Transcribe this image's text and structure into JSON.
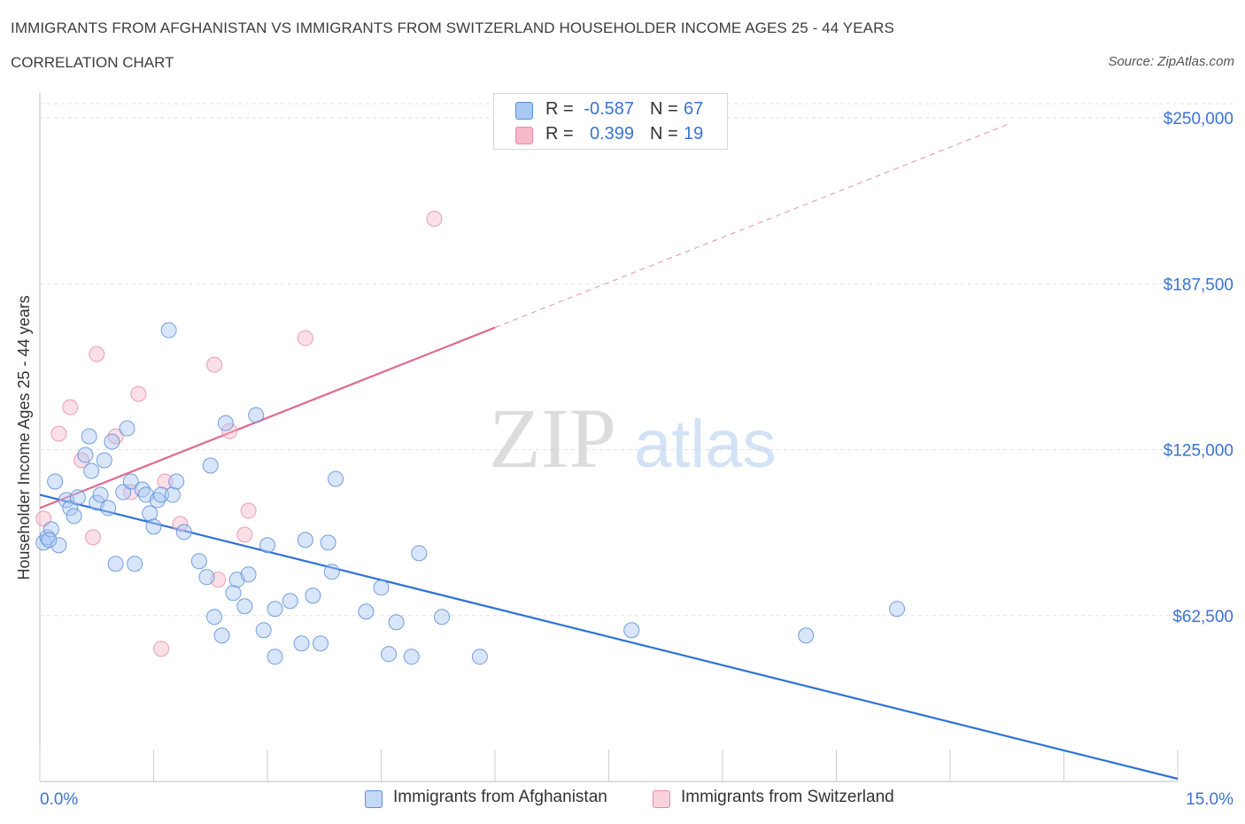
{
  "header": {
    "title": "IMMIGRANTS FROM AFGHANISTAN VS IMMIGRANTS FROM SWITZERLAND HOUSEHOLDER INCOME AGES 25 - 44 YEARS",
    "subtitle": "CORRELATION CHART",
    "source": "Source: ZipAtlas.com"
  },
  "watermark": {
    "zip": "ZIP",
    "atlas": "atlas"
  },
  "legend": {
    "rows": [
      {
        "r_label": "R =",
        "r_value": "-0.587",
        "n_label": "N =",
        "n_value": "67",
        "color": "#aac8f4"
      },
      {
        "r_label": "R =",
        "r_value": "0.399",
        "n_label": "N =",
        "n_value": "19",
        "color": "#f7b8ca"
      }
    ]
  },
  "bottom_legend": {
    "afghanistan": "Immigrants from Afghanistan",
    "switzerland": "Immigrants from Switzerland"
  },
  "colors": {
    "afghanistan_fill": "#aac8f4",
    "afghanistan_stroke": "#5b8fd8",
    "afghanistan_line": "#2f72d4",
    "switzerland_fill": "#f7b8ca",
    "switzerland_stroke": "#e88aa8",
    "switzerland_line": "#e0688f",
    "tick_label": "#3b73d1",
    "grid": "#e2e2e2"
  },
  "chart_data": {
    "type": "scatter",
    "title": "IMMIGRANTS FROM AFGHANISTAN VS IMMIGRANTS FROM SWITZERLAND HOUSEHOLDER INCOME AGES 25 - 44 YEARS",
    "xlabel": "",
    "ylabel": "Householder Income Ages 25 - 44 years",
    "xlim": [
      0,
      15
    ],
    "ylim": [
      0,
      250000
    ],
    "x_tick_labels": [
      "0.0%",
      "15.0%"
    ],
    "y_ticks": [
      {
        "value": 62500,
        "label": "$62,500"
      },
      {
        "value": 125000,
        "label": "$125,000"
      },
      {
        "value": 187500,
        "label": "$187,500"
      },
      {
        "value": 250000,
        "label": "$250,000"
      }
    ],
    "grid": true,
    "legend_position": "top-center",
    "series": [
      {
        "name": "Immigrants from Afghanistan",
        "points": [
          [
            0.05,
            90000
          ],
          [
            0.1,
            92000
          ],
          [
            0.15,
            95000
          ],
          [
            0.25,
            89000
          ],
          [
            0.2,
            113000
          ],
          [
            0.35,
            106000
          ],
          [
            0.4,
            103000
          ],
          [
            0.45,
            100000
          ],
          [
            0.5,
            107000
          ],
          [
            0.6,
            123000
          ],
          [
            0.65,
            130000
          ],
          [
            0.68,
            117000
          ],
          [
            0.75,
            105000
          ],
          [
            0.8,
            108000
          ],
          [
            0.85,
            121000
          ],
          [
            0.9,
            103000
          ],
          [
            0.95,
            128000
          ],
          [
            1.0,
            82000
          ],
          [
            1.1,
            109000
          ],
          [
            1.15,
            133000
          ],
          [
            1.2,
            113000
          ],
          [
            1.25,
            82000
          ],
          [
            1.35,
            110000
          ],
          [
            1.4,
            108000
          ],
          [
            1.45,
            101000
          ],
          [
            1.5,
            96000
          ],
          [
            1.55,
            106000
          ],
          [
            1.6,
            108000
          ],
          [
            1.7,
            170000
          ],
          [
            1.75,
            108000
          ],
          [
            1.8,
            113000
          ],
          [
            1.9,
            94000
          ],
          [
            2.1,
            83000
          ],
          [
            2.2,
            77000
          ],
          [
            2.3,
            62000
          ],
          [
            2.25,
            119000
          ],
          [
            2.4,
            55000
          ],
          [
            2.45,
            135000
          ],
          [
            2.55,
            71000
          ],
          [
            2.6,
            76000
          ],
          [
            2.7,
            66000
          ],
          [
            2.75,
            78000
          ],
          [
            2.85,
            138000
          ],
          [
            2.95,
            57000
          ],
          [
            3.0,
            89000
          ],
          [
            3.1,
            47000
          ],
          [
            3.1,
            65000
          ],
          [
            3.3,
            68000
          ],
          [
            3.45,
            52000
          ],
          [
            3.5,
            91000
          ],
          [
            3.6,
            70000
          ],
          [
            3.7,
            52000
          ],
          [
            3.8,
            90000
          ],
          [
            3.85,
            79000
          ],
          [
            3.9,
            114000
          ],
          [
            4.3,
            64000
          ],
          [
            4.5,
            73000
          ],
          [
            4.6,
            48000
          ],
          [
            4.7,
            60000
          ],
          [
            4.9,
            47000
          ],
          [
            5.0,
            86000
          ],
          [
            5.3,
            62000
          ],
          [
            5.8,
            47000
          ],
          [
            7.8,
            57000
          ],
          [
            10.1,
            55000
          ],
          [
            11.3,
            65000
          ],
          [
            0.12,
            91000
          ]
        ]
      },
      {
        "name": "Immigrants from Switzerland",
        "points": [
          [
            0.05,
            99000
          ],
          [
            0.25,
            131000
          ],
          [
            0.4,
            141000
          ],
          [
            0.55,
            121000
          ],
          [
            0.7,
            92000
          ],
          [
            0.75,
            161000
          ],
          [
            1.0,
            130000
          ],
          [
            1.2,
            109000
          ],
          [
            1.3,
            146000
          ],
          [
            1.65,
            113000
          ],
          [
            1.85,
            97000
          ],
          [
            2.3,
            157000
          ],
          [
            2.35,
            76000
          ],
          [
            2.5,
            132000
          ],
          [
            2.7,
            93000
          ],
          [
            2.75,
            102000
          ],
          [
            3.5,
            167000
          ],
          [
            5.2,
            212000
          ],
          [
            1.6,
            50000
          ]
        ]
      }
    ],
    "trendlines": [
      {
        "series": "Immigrants from Afghanistan",
        "x": [
          0,
          15
        ],
        "y": [
          108000,
          1000
        ]
      },
      {
        "series": "Immigrants from Switzerland",
        "x": [
          0,
          6
        ],
        "y": [
          103000,
          171000
        ],
        "dashed_extension_to": [
          12.8,
          248000
        ]
      }
    ]
  }
}
